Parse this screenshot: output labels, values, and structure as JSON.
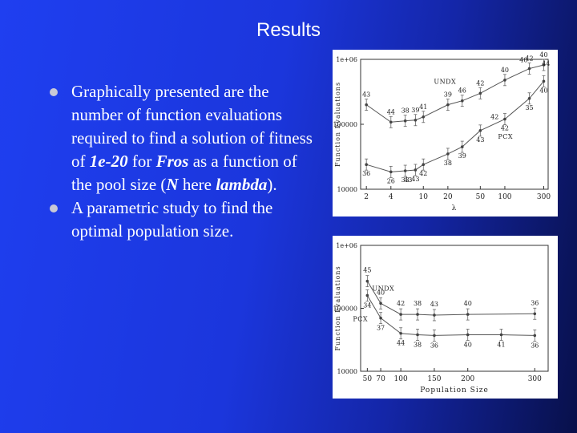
{
  "slide": {
    "title": "Results",
    "bullets": [
      {
        "segments": [
          {
            "text": "Graphically presented are the number of function evaluations required to find a solution of fitness of ",
            "style": "normal"
          },
          {
            "text": "1e-20",
            "style": "bold-italic"
          },
          {
            "text": " for ",
            "style": "normal"
          },
          {
            "text": "Fros",
            "style": "bold-italic"
          },
          {
            "text": " as a function of the pool size (",
            "style": "normal"
          },
          {
            "text": "N",
            "style": "bold-italic"
          },
          {
            "text": " here ",
            "style": "normal"
          },
          {
            "text": "lambda",
            "style": "bold-italic"
          },
          {
            "text": ").",
            "style": "normal"
          }
        ]
      },
      {
        "segments": [
          {
            "text": "A parametric study to find the optimal population size.",
            "style": "normal"
          }
        ]
      }
    ]
  },
  "chart_data": [
    {
      "type": "line",
      "title": "",
      "xlabel": "λ",
      "ylabel": "Function Evaluations",
      "xscale": "log",
      "yscale": "log",
      "xlim": [
        1.7,
        340
      ],
      "ylim": [
        10000,
        1000000
      ],
      "xticks": [
        2,
        4,
        10,
        20,
        50,
        100,
        300
      ],
      "xtick_labels": [
        "2",
        "4",
        "10",
        "20",
        "50",
        "100",
        "300"
      ],
      "yticks": [
        10000,
        100000,
        1000000
      ],
      "ytick_labels": [
        "10000",
        "100000",
        "1e+06"
      ],
      "series": [
        {
          "name": "UNDX",
          "x": [
            2,
            4,
            6,
            8,
            10,
            20,
            30,
            50,
            100,
            200,
            300
          ],
          "y": [
            200000,
            108000,
            113000,
            116000,
            130000,
            200000,
            230000,
            300000,
            480000,
            720000,
            820000
          ],
          "point_labels": [
            "43",
            "44",
            "38",
            "39",
            "41",
            "39",
            "46",
            "42",
            "40",
            "42",
            "40"
          ]
        },
        {
          "name": "PCX",
          "x": [
            2,
            4,
            6,
            8,
            10,
            20,
            30,
            50,
            100,
            200,
            300
          ],
          "y": [
            24000,
            18500,
            19200,
            19800,
            24000,
            35000,
            45000,
            80000,
            120000,
            250000,
            460000
          ],
          "point_labels": [
            "36",
            "26",
            "33",
            "43",
            "42",
            "38",
            "39",
            "43",
            "42",
            "35",
            "40"
          ]
        }
      ],
      "extra_labels": [
        "43",
        "42",
        "40",
        "44"
      ]
    },
    {
      "type": "line",
      "title": "",
      "xlabel": "Population Size",
      "ylabel": "Function Evaluations",
      "yscale": "log",
      "xlim": [
        40,
        320
      ],
      "ylim": [
        10000,
        1000000
      ],
      "xticks": [
        50,
        70,
        100,
        150,
        200,
        300
      ],
      "xtick_labels": [
        "50",
        "70",
        "100",
        "150",
        "200",
        "300"
      ],
      "yticks": [
        10000,
        100000,
        1000000
      ],
      "ytick_labels": [
        "10000",
        "100000",
        "1e+06"
      ],
      "series": [
        {
          "name": "UNDX",
          "x": [
            50,
            70,
            100,
            125,
            150,
            200,
            300
          ],
          "y": [
            270000,
            120000,
            80000,
            80000,
            78000,
            80000,
            82000
          ],
          "point_labels": [
            "45",
            "40",
            "42",
            "38",
            "43",
            "40",
            "36"
          ]
        },
        {
          "name": "PCX",
          "x": [
            50,
            70,
            100,
            125,
            150,
            200,
            250,
            300
          ],
          "y": [
            160000,
            70000,
            40000,
            38000,
            37000,
            38000,
            38000,
            37000
          ],
          "point_labels": [
            "34",
            "37",
            "44",
            "38",
            "36",
            "40",
            "41",
            "36"
          ]
        }
      ]
    }
  ]
}
